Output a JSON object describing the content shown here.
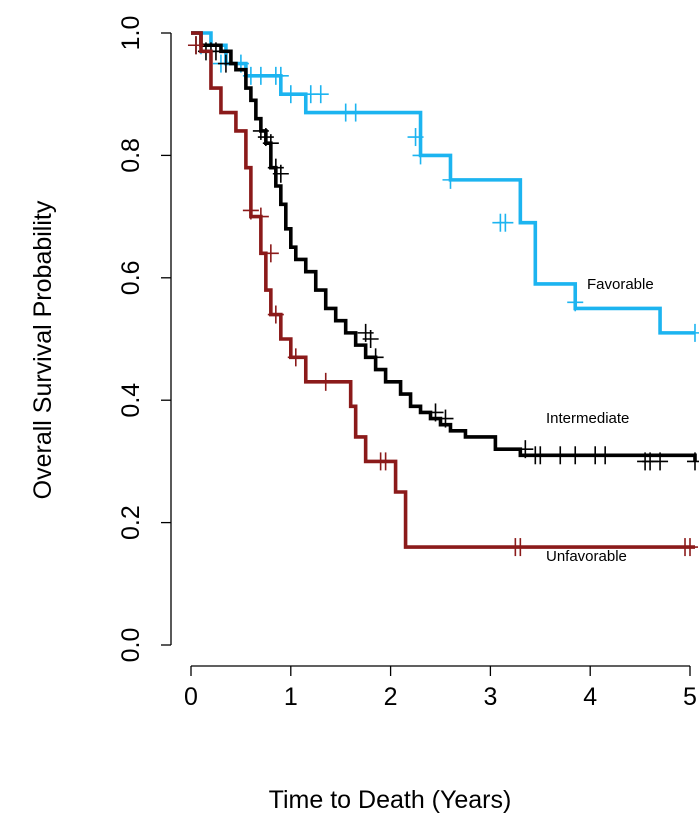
{
  "chart_data": {
    "type": "line",
    "title": "",
    "xlabel": "Time to Death (Years)",
    "ylabel": "Overall Survival Probability",
    "xlim": [
      0,
      5
    ],
    "ylim": [
      0,
      1
    ],
    "x_ticks": [
      "0",
      "1",
      "2",
      "3",
      "4",
      "5"
    ],
    "y_ticks": [
      "0.0",
      "0.2",
      "0.4",
      "0.6",
      "0.8",
      "1.0"
    ],
    "grid": false,
    "legend": "none (series labelled inline near curve ends)",
    "series": [
      {
        "name": "Favorable",
        "color": "#1CB4F0",
        "x": [
          0,
          0.2,
          0.35,
          0.45,
          0.55,
          0.9,
          1.15,
          1.6,
          2.3,
          2.6,
          3.3,
          3.45,
          3.85,
          4.7,
          5.05
        ],
        "y": [
          1.0,
          0.98,
          0.95,
          0.95,
          0.93,
          0.9,
          0.87,
          0.87,
          0.8,
          0.76,
          0.69,
          0.59,
          0.55,
          0.51,
          0.51
        ],
        "censored": [
          [
            0.1,
            0.98
          ],
          [
            0.3,
            0.95
          ],
          [
            0.5,
            0.95
          ],
          [
            0.6,
            0.93
          ],
          [
            0.7,
            0.93
          ],
          [
            0.85,
            0.93
          ],
          [
            0.9,
            0.93
          ],
          [
            1.0,
            0.9
          ],
          [
            1.2,
            0.9
          ],
          [
            1.3,
            0.9
          ],
          [
            1.55,
            0.87
          ],
          [
            1.65,
            0.87
          ],
          [
            2.25,
            0.83
          ],
          [
            2.3,
            0.8
          ],
          [
            2.6,
            0.76
          ],
          [
            3.1,
            0.69
          ],
          [
            3.15,
            0.69
          ],
          [
            3.85,
            0.56
          ],
          [
            5.05,
            0.51
          ]
        ]
      },
      {
        "name": "Intermediate",
        "color": "#000000",
        "x": [
          0,
          0.1,
          0.3,
          0.4,
          0.45,
          0.55,
          0.6,
          0.65,
          0.7,
          0.75,
          0.8,
          0.85,
          0.9,
          0.95,
          1.0,
          1.05,
          1.15,
          1.25,
          1.35,
          1.45,
          1.55,
          1.65,
          1.75,
          1.85,
          1.95,
          2.1,
          2.2,
          2.3,
          2.4,
          2.5,
          2.6,
          2.75,
          3.05,
          3.3,
          5.05
        ],
        "y": [
          1.0,
          0.98,
          0.97,
          0.95,
          0.94,
          0.91,
          0.89,
          0.86,
          0.84,
          0.82,
          0.78,
          0.75,
          0.72,
          0.68,
          0.65,
          0.63,
          0.61,
          0.58,
          0.55,
          0.53,
          0.51,
          0.49,
          0.47,
          0.45,
          0.43,
          0.41,
          0.39,
          0.38,
          0.37,
          0.36,
          0.35,
          0.34,
          0.32,
          0.31,
          0.3
        ],
        "censored": [
          [
            0.05,
            0.98
          ],
          [
            0.15,
            0.97
          ],
          [
            0.2,
            0.97
          ],
          [
            0.25,
            0.97
          ],
          [
            0.35,
            0.95
          ],
          [
            0.7,
            0.84
          ],
          [
            0.75,
            0.83
          ],
          [
            0.8,
            0.82
          ],
          [
            0.85,
            0.78
          ],
          [
            0.9,
            0.77
          ],
          [
            1.75,
            0.51
          ],
          [
            1.8,
            0.5
          ],
          [
            1.85,
            0.47
          ],
          [
            2.45,
            0.38
          ],
          [
            2.55,
            0.37
          ],
          [
            3.35,
            0.32
          ],
          [
            3.45,
            0.31
          ],
          [
            3.5,
            0.31
          ],
          [
            3.7,
            0.31
          ],
          [
            3.85,
            0.31
          ],
          [
            4.05,
            0.31
          ],
          [
            4.15,
            0.31
          ],
          [
            4.55,
            0.3
          ],
          [
            4.6,
            0.3
          ],
          [
            4.7,
            0.3
          ],
          [
            5.05,
            0.3
          ]
        ]
      },
      {
        "name": "Unfavorable",
        "color": "#8B1A1A",
        "x": [
          0,
          0.1,
          0.2,
          0.3,
          0.45,
          0.55,
          0.6,
          0.7,
          0.75,
          0.8,
          0.9,
          1.0,
          1.15,
          1.3,
          1.6,
          1.65,
          1.75,
          2.05,
          2.15,
          5.05
        ],
        "y": [
          1.0,
          0.97,
          0.91,
          0.87,
          0.84,
          0.78,
          0.7,
          0.64,
          0.58,
          0.54,
          0.5,
          0.47,
          0.43,
          0.43,
          0.39,
          0.34,
          0.3,
          0.25,
          0.16,
          0.16
        ],
        "censored": [
          [
            0.05,
            0.98
          ],
          [
            0.6,
            0.71
          ],
          [
            0.7,
            0.7
          ],
          [
            0.8,
            0.64
          ],
          [
            0.85,
            0.54
          ],
          [
            1.05,
            0.47
          ],
          [
            1.35,
            0.43
          ],
          [
            1.9,
            0.3
          ],
          [
            1.95,
            0.3
          ],
          [
            3.25,
            0.16
          ],
          [
            3.3,
            0.16
          ],
          [
            4.95,
            0.16
          ],
          [
            5.0,
            0.16
          ]
        ]
      }
    ]
  }
}
